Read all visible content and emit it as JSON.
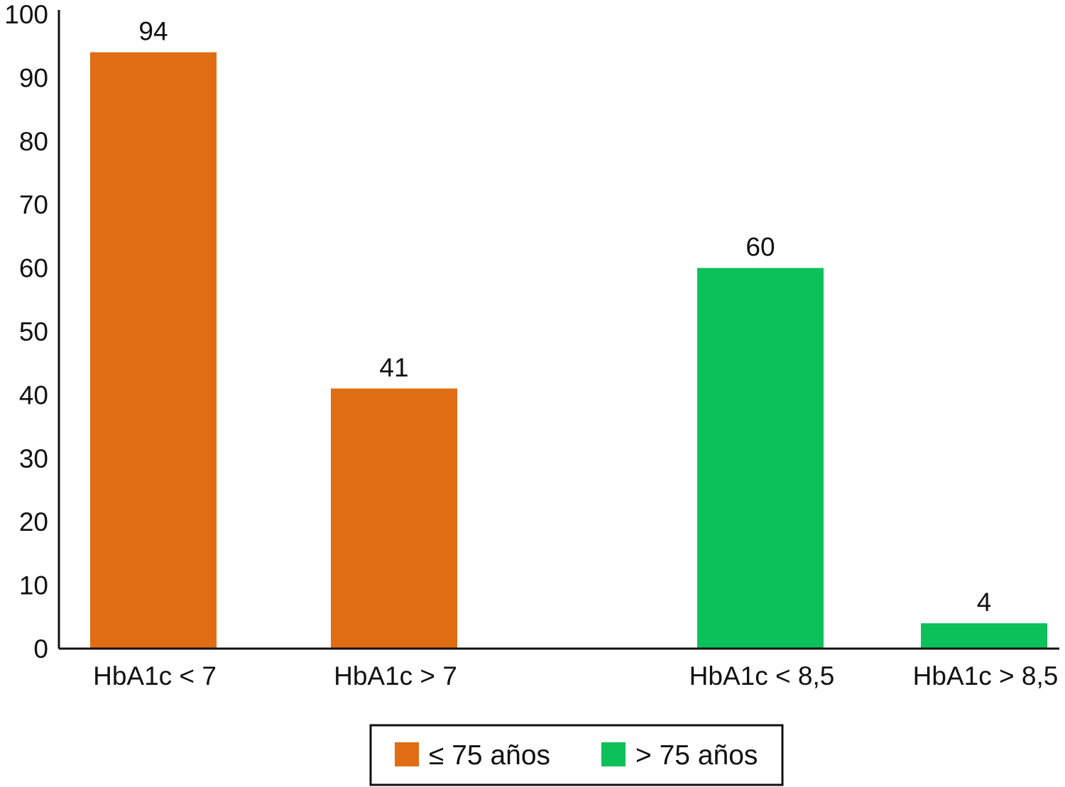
{
  "chart_data": {
    "type": "bar",
    "title": "",
    "xlabel": "",
    "ylabel": "",
    "ylim": [
      0,
      100
    ],
    "yticks": [
      0,
      10,
      20,
      30,
      40,
      50,
      60,
      70,
      80,
      90,
      100
    ],
    "grid": false,
    "legend_placement": "bottom-center",
    "categories": [
      "HbA1c < 7",
      "HbA1c > 7",
      "HbA1c < 8,5",
      "HbA1c > 8,5"
    ],
    "series": [
      {
        "name": "≤ 75 años",
        "color": "#e06c14",
        "values": [
          94,
          41,
          null,
          null
        ]
      },
      {
        "name": "> 75 años",
        "color": "#0cc05a",
        "values": [
          null,
          null,
          60,
          4
        ]
      }
    ],
    "data_labels": [
      "94",
      "41",
      "60",
      "4"
    ]
  }
}
